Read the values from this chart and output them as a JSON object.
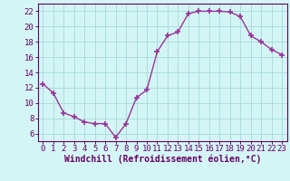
{
  "x": [
    0,
    1,
    2,
    3,
    4,
    5,
    6,
    7,
    8,
    9,
    10,
    11,
    12,
    13,
    14,
    15,
    16,
    17,
    18,
    19,
    20,
    21,
    22,
    23
  ],
  "y": [
    12.5,
    11.3,
    8.7,
    8.2,
    7.5,
    7.3,
    7.3,
    5.5,
    7.3,
    10.7,
    11.7,
    16.7,
    18.8,
    19.3,
    21.7,
    22.0,
    22.0,
    22.0,
    21.9,
    21.3,
    18.8,
    18.0,
    17.0,
    16.3
  ],
  "line_color": "#993399",
  "marker": "+",
  "marker_size": 5,
  "marker_lw": 1.2,
  "bg_color": "#d4f5f5",
  "grid_color": "#aadddd",
  "yticks": [
    6,
    8,
    10,
    12,
    14,
    16,
    18,
    20,
    22
  ],
  "xlabel": "Windchill (Refroidissement éolien,°C)",
  "xlim": [
    -0.5,
    23.5
  ],
  "ylim": [
    5.0,
    23.0
  ],
  "tick_fontsize": 6.5,
  "label_fontsize": 7.0,
  "axis_color": "#660066",
  "line_width": 1.0
}
